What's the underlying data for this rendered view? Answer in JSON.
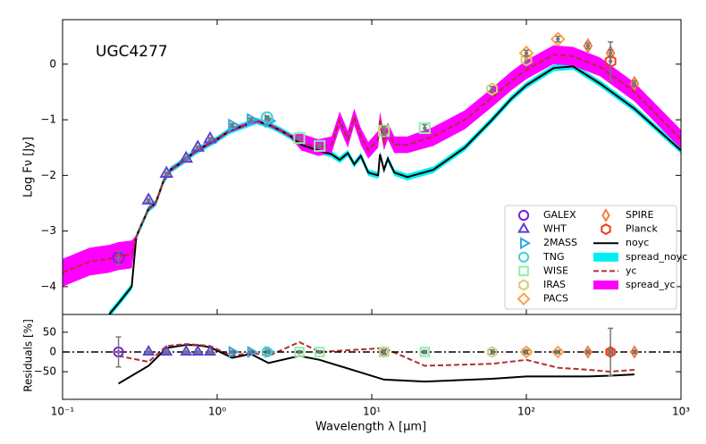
{
  "chart_data": {
    "type": "sed",
    "annotation": "UGC4277",
    "xlabel": "Wavelength λ [μm]",
    "ylabel": "Log Fν [Jy]",
    "residual_ylabel": "Residuals [%]",
    "xscale": "log",
    "xlim": [
      0.1,
      1000
    ],
    "xticks": [
      {
        "value": 0.1,
        "label": "10⁻¹"
      },
      {
        "value": 1,
        "label": "10⁰"
      },
      {
        "value": 10,
        "label": "10¹"
      },
      {
        "value": 100,
        "label": "10²"
      },
      {
        "value": 1000,
        "label": "10³"
      }
    ],
    "ylim": [
      -4.5,
      0.8
    ],
    "yticks": [
      {
        "value": -4,
        "label": "−4"
      },
      {
        "value": -3,
        "label": "−3"
      },
      {
        "value": -2,
        "label": "−2"
      },
      {
        "value": -1,
        "label": "−1"
      },
      0
    ],
    "residual_ylim": [
      -120,
      95
    ],
    "residual_yticks": [
      {
        "value": -50,
        "label": "−50"
      },
      0,
      50
    ],
    "residual_reference": 0,
    "legend": "lower right",
    "model_x": [
      0.1,
      0.15,
      0.2,
      0.23,
      0.28,
      0.3,
      0.36,
      0.4,
      0.45,
      0.5,
      0.6,
      0.7,
      0.8,
      1.0,
      1.2,
      1.5,
      1.8,
      2.2,
      2.6,
      3,
      3.5,
      4.5,
      5.5,
      6.2,
      7,
      7.7,
      8.5,
      9.5,
      11,
      11.3,
      12,
      12.7,
      14,
      17,
      25,
      40,
      60,
      80,
      100,
      150,
      200,
      300,
      500,
      1000
    ],
    "bands": [
      {
        "name": "spread_noyc",
        "color": "#00f0f0",
        "upper": [
          null,
          null,
          -4.44,
          -4.24,
          -3.94,
          -3.04,
          -2.54,
          -2.44,
          -2.04,
          -1.84,
          -1.69,
          -1.54,
          -1.44,
          -1.29,
          -1.14,
          -1.04,
          -0.96,
          -1.04,
          -1.14,
          -1.24,
          -1.39,
          -1.49,
          -1.56,
          -1.66,
          -1.54,
          -1.74,
          -1.59,
          -1.89,
          -1.94,
          -1.56,
          -1.84,
          -1.64,
          -1.89,
          -1.97,
          -1.84,
          -1.44,
          -0.94,
          -0.56,
          -0.32,
          -0.01,
          0.02,
          -0.29,
          -0.74,
          -1.49
        ],
        "lower": [
          null,
          null,
          -4.56,
          -4.36,
          -4.06,
          -3.16,
          -2.66,
          -2.56,
          -2.16,
          -1.96,
          -1.81,
          -1.66,
          -1.56,
          -1.41,
          -1.26,
          -1.16,
          -1.08,
          -1.16,
          -1.26,
          -1.36,
          -1.51,
          -1.61,
          -1.68,
          -1.78,
          -1.66,
          -1.86,
          -1.71,
          -2.01,
          -2.06,
          -1.68,
          -1.96,
          -1.76,
          -2.01,
          -2.09,
          -1.96,
          -1.56,
          -1.06,
          -0.68,
          -0.44,
          -0.13,
          -0.1,
          -0.41,
          -0.86,
          -1.61
        ]
      },
      {
        "name": "spread_yc",
        "color": "#ff00ff",
        "upper": [
          -3.5,
          -3.3,
          -3.25,
          -3.2,
          -3.17,
          -3.07,
          -2.57,
          -2.47,
          -2.07,
          -1.87,
          -1.72,
          -1.57,
          -1.47,
          -1.32,
          -1.17,
          -1.07,
          -0.99,
          -1.07,
          -1.17,
          -1.27,
          -1.25,
          -1.35,
          -1.3,
          -0.85,
          -1.2,
          -0.8,
          -1.15,
          -1.4,
          -1.2,
          -0.85,
          -1.25,
          -1.05,
          -1.3,
          -1.3,
          -1.13,
          -0.83,
          -0.43,
          -0.13,
          0.07,
          0.34,
          0.31,
          0.12,
          -0.33,
          -1.18
        ],
        "lower": [
          -4.0,
          -3.8,
          -3.75,
          -3.7,
          -3.67,
          -3.13,
          -2.63,
          -2.53,
          -2.13,
          -1.93,
          -1.78,
          -1.63,
          -1.53,
          -1.38,
          -1.23,
          -1.13,
          -1.05,
          -1.13,
          -1.23,
          -1.33,
          -1.55,
          -1.65,
          -1.6,
          -1.15,
          -1.5,
          -1.1,
          -1.45,
          -1.7,
          -1.5,
          -1.15,
          -1.55,
          -1.35,
          -1.6,
          -1.6,
          -1.47,
          -1.17,
          -0.77,
          -0.47,
          -0.27,
          0.0,
          -0.03,
          -0.22,
          -0.67,
          -1.52
        ]
      }
    ],
    "lines": [
      {
        "name": "noyc",
        "color": "#000000",
        "style": "solid",
        "values": [
          null,
          null,
          -4.5,
          -4.3,
          -4.0,
          -3.1,
          -2.6,
          -2.5,
          -2.1,
          -1.9,
          -1.75,
          -1.6,
          -1.5,
          -1.35,
          -1.2,
          -1.1,
          -1.02,
          -1.1,
          -1.2,
          -1.3,
          -1.45,
          -1.55,
          -1.62,
          -1.72,
          -1.6,
          -1.8,
          -1.65,
          -1.95,
          -2.0,
          -1.62,
          -1.9,
          -1.7,
          -1.95,
          -2.03,
          -1.9,
          -1.5,
          -1.0,
          -0.62,
          -0.38,
          -0.07,
          -0.04,
          -0.35,
          -0.8,
          -1.55
        ],
        "residual_x": [
          0.23,
          0.36,
          0.47,
          0.63,
          0.75,
          0.9,
          1.25,
          1.65,
          2.15,
          3.4,
          4.6,
          12,
          22,
          60,
          100,
          160,
          250,
          350,
          500
        ],
        "residual_values": [
          -80,
          -35,
          10,
          18,
          17,
          12,
          -15,
          -5,
          -28,
          -10,
          -20,
          -70,
          -75,
          -68,
          -62,
          -62,
          -62,
          -60,
          -57
        ]
      },
      {
        "name": "yc",
        "color": "#b03030",
        "style": "dashed",
        "values": [
          -3.75,
          -3.55,
          -3.5,
          -3.45,
          -3.42,
          -3.1,
          -2.6,
          -2.5,
          -2.1,
          -1.9,
          -1.75,
          -1.6,
          -1.5,
          -1.35,
          -1.2,
          -1.1,
          -1.02,
          -1.1,
          -1.2,
          -1.3,
          -1.4,
          -1.5,
          -1.45,
          -1.0,
          -1.35,
          -0.95,
          -1.3,
          -1.55,
          -1.35,
          -1.0,
          -1.4,
          -1.2,
          -1.45,
          -1.45,
          -1.3,
          -1.0,
          -0.6,
          -0.3,
          -0.1,
          0.17,
          0.14,
          -0.05,
          -0.5,
          -1.35
        ],
        "residual_x": [
          0.23,
          0.36,
          0.47,
          0.63,
          0.75,
          0.9,
          1.25,
          1.65,
          2.15,
          3.4,
          4.6,
          12,
          22,
          60,
          100,
          160,
          250,
          350,
          500
        ],
        "residual_values": [
          -10,
          -25,
          15,
          20,
          18,
          15,
          -10,
          -2,
          -10,
          25,
          0,
          10,
          -35,
          -30,
          -20,
          -40,
          -45,
          -50,
          -45
        ]
      }
    ],
    "photometry": [
      {
        "name": "GALEX",
        "color": "#7d1fd6",
        "marker": "circle",
        "x": [
          0.23
        ],
        "y": [
          -3.48
        ],
        "yerr": [
          0.12
        ],
        "residual": [
          0
        ],
        "residual_err": [
          38
        ]
      },
      {
        "name": "WHT",
        "color": "#5b3fd9",
        "marker": "triangle-up",
        "x": [
          0.36,
          0.47,
          0.63,
          0.75,
          0.9
        ],
        "y": [
          -2.45,
          -1.97,
          -1.7,
          -1.5,
          -1.35
        ],
        "yerr": [
          0.03,
          0.03,
          0.03,
          0.03,
          0.03
        ],
        "residual": [
          0,
          0,
          0,
          0,
          0
        ],
        "residual_err": [
          3,
          3,
          3,
          3,
          3
        ]
      },
      {
        "name": "2MASS",
        "color": "#2fa8e8",
        "marker": "triangle-right",
        "x": [
          1.25,
          1.65,
          2.15
        ],
        "y": [
          -1.1,
          -1.0,
          -1.02
        ],
        "yerr": [
          0.03,
          0.03,
          0.03
        ],
        "residual": [
          0,
          0,
          0
        ],
        "residual_err": [
          3,
          3,
          3
        ]
      },
      {
        "name": "TNG",
        "color": "#3fd3d0",
        "marker": "circle",
        "x": [
          2.1
        ],
        "y": [
          -0.96
        ],
        "yerr": [
          0.03
        ],
        "residual": [
          0
        ],
        "residual_err": [
          3
        ]
      },
      {
        "name": "WISE",
        "color": "#8ef0a8",
        "marker": "square",
        "x": [
          3.4,
          4.6,
          12,
          22
        ],
        "y": [
          -1.33,
          -1.47,
          -1.2,
          -1.15
        ],
        "yerr": [
          0.03,
          0.03,
          0.05,
          0.06
        ],
        "residual": [
          0,
          0,
          0,
          0
        ],
        "residual_err": [
          3,
          3,
          4,
          4
        ]
      },
      {
        "name": "IRAS",
        "color": "#d2cf73",
        "marker": "hexagon",
        "x": [
          12,
          60,
          100
        ],
        "y": [
          -1.2,
          -0.45,
          0.08
        ],
        "yerr": [
          0.08,
          0.05,
          0.05
        ],
        "residual": [
          0,
          0,
          0
        ],
        "residual_err": [
          6,
          5,
          5
        ]
      },
      {
        "name": "PACS",
        "color": "#ffa24a",
        "marker": "diamond",
        "x": [
          100,
          160
        ],
        "y": [
          0.2,
          0.45
        ],
        "yerr": [
          0.05,
          0.05
        ],
        "residual": [
          0,
          0
        ],
        "residual_err": [
          4,
          4
        ]
      },
      {
        "name": "SPIRE",
        "color": "#ff7a3a",
        "marker": "thin-diamond",
        "x": [
          250,
          350,
          500
        ],
        "y": [
          0.33,
          0.2,
          -0.35
        ],
        "yerr": [
          0.05,
          0.05,
          0.05
        ],
        "residual": [
          0,
          0,
          0
        ],
        "residual_err": [
          4,
          4,
          4
        ]
      },
      {
        "name": "Planck",
        "color": "#ef3b1a",
        "marker": "hexagon",
        "x": [
          350
        ],
        "y": [
          0.05
        ],
        "yerr": [
          0.35
        ],
        "residual": [
          0
        ],
        "residual_err": [
          60
        ]
      }
    ]
  }
}
